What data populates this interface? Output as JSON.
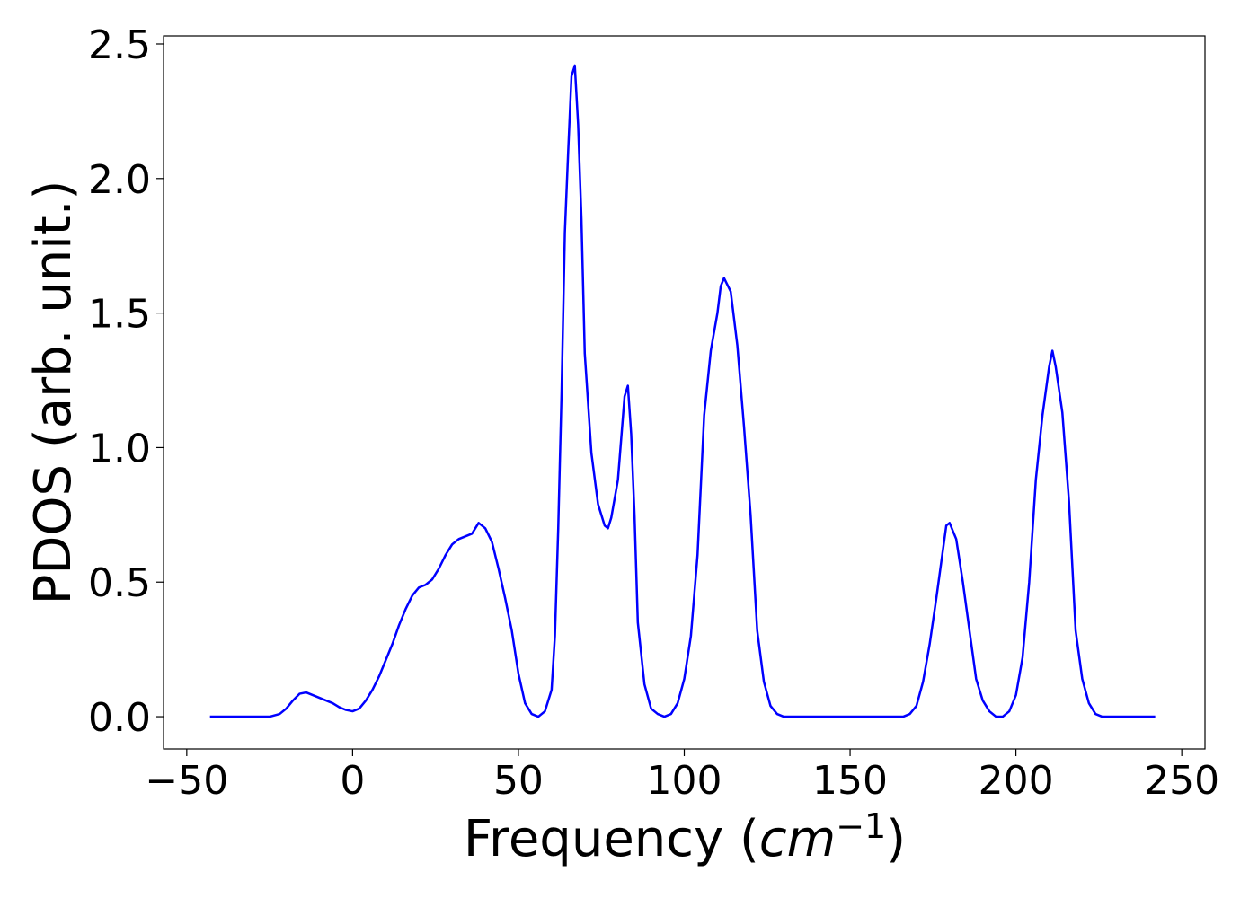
{
  "chart_data": {
    "type": "line",
    "xlabel_prefix": "Frequency (",
    "xlabel_unit": "cm",
    "xlabel_exponent": "−1",
    "xlabel_suffix": ")",
    "ylabel": "PDOS (arb. unit.)",
    "xlim": [
      -57,
      257
    ],
    "ylim": [
      -0.12,
      2.53
    ],
    "xticks": [
      -50,
      0,
      50,
      100,
      150,
      200,
      250
    ],
    "xtick_labels": [
      "−50",
      "0",
      "50",
      "100",
      "150",
      "200",
      "250"
    ],
    "yticks": [
      0.0,
      0.5,
      1.0,
      1.5,
      2.0,
      2.5
    ],
    "ytick_labels": [
      "0.0",
      "0.5",
      "1.0",
      "1.5",
      "2.0",
      "2.5"
    ],
    "grid": false,
    "series": [
      {
        "color": "#0000ff",
        "x": [
          -43,
          -25,
          -22,
          -20,
          -18,
          -16,
          -14,
          -12,
          -10,
          -8,
          -6,
          -4,
          -2,
          0,
          2,
          4,
          6,
          8,
          10,
          12,
          14,
          16,
          18,
          20,
          22,
          24,
          26,
          28,
          30,
          32,
          34,
          36,
          38,
          40,
          42,
          44,
          46,
          48,
          50,
          52,
          54,
          56,
          58,
          60,
          61,
          62,
          63,
          64,
          65,
          66,
          67,
          68,
          69,
          70,
          72,
          74,
          76,
          77,
          78,
          80,
          82,
          83,
          84,
          85,
          86,
          88,
          90,
          92,
          94,
          96,
          98,
          100,
          102,
          104,
          106,
          108,
          110,
          111,
          112,
          114,
          116,
          118,
          120,
          122,
          124,
          126,
          128,
          130,
          140,
          150,
          160,
          166,
          168,
          170,
          172,
          174,
          176,
          178,
          179,
          180,
          182,
          184,
          186,
          188,
          190,
          192,
          194,
          196,
          198,
          200,
          202,
          204,
          206,
          208,
          210,
          211,
          212,
          214,
          216,
          218,
          220,
          222,
          224,
          226,
          230,
          242
        ],
        "values": [
          0.0,
          0.0,
          0.01,
          0.03,
          0.06,
          0.085,
          0.09,
          0.08,
          0.07,
          0.06,
          0.05,
          0.035,
          0.025,
          0.02,
          0.03,
          0.06,
          0.1,
          0.15,
          0.21,
          0.27,
          0.34,
          0.4,
          0.45,
          0.48,
          0.49,
          0.51,
          0.55,
          0.6,
          0.64,
          0.66,
          0.67,
          0.68,
          0.72,
          0.7,
          0.65,
          0.55,
          0.44,
          0.32,
          0.16,
          0.05,
          0.01,
          0.0,
          0.02,
          0.1,
          0.3,
          0.7,
          1.2,
          1.8,
          2.1,
          2.38,
          2.42,
          2.2,
          1.85,
          1.35,
          0.98,
          0.79,
          0.71,
          0.7,
          0.74,
          0.88,
          1.19,
          1.23,
          1.05,
          0.75,
          0.35,
          0.12,
          0.03,
          0.01,
          0.0,
          0.01,
          0.05,
          0.14,
          0.3,
          0.6,
          1.12,
          1.36,
          1.5,
          1.6,
          1.63,
          1.58,
          1.38,
          1.08,
          0.75,
          0.32,
          0.13,
          0.04,
          0.01,
          0.0,
          0.0,
          0.0,
          0.0,
          0.0,
          0.01,
          0.04,
          0.13,
          0.27,
          0.44,
          0.62,
          0.71,
          0.72,
          0.66,
          0.5,
          0.32,
          0.14,
          0.06,
          0.02,
          0.0,
          0.0,
          0.02,
          0.08,
          0.22,
          0.5,
          0.88,
          1.12,
          1.3,
          1.36,
          1.3,
          1.13,
          0.8,
          0.32,
          0.14,
          0.05,
          0.01,
          0.0,
          0.0,
          0.0
        ]
      }
    ]
  }
}
